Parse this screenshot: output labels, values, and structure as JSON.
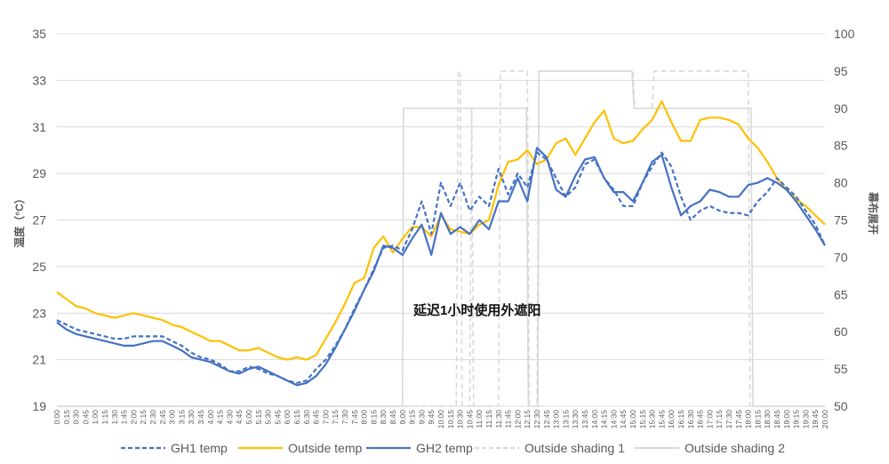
{
  "chart_data": {
    "type": "line",
    "y_left": {
      "label": "温度（°C）",
      "min": 19,
      "max": 35,
      "ticks": [
        19,
        21,
        23,
        25,
        27,
        29,
        31,
        33,
        35
      ]
    },
    "y_right": {
      "label": "幕布展开",
      "min": 50,
      "max": 100,
      "ticks": [
        50,
        55,
        60,
        65,
        70,
        75,
        80,
        85,
        90,
        95,
        100
      ]
    },
    "x_labels": [
      "0:00",
      "0:15",
      "0:30",
      "0:45",
      "1:00",
      "1:15",
      "1:30",
      "1:45",
      "2:00",
      "2:15",
      "2:30",
      "2:45",
      "3:00",
      "3:15",
      "3:30",
      "3:45",
      "4:00",
      "4:15",
      "4:30",
      "4:45",
      "5:00",
      "5:15",
      "5:30",
      "5:45",
      "6:00",
      "6:15",
      "6:30",
      "6:45",
      "7:00",
      "7:15",
      "7:30",
      "7:45",
      "8:00",
      "8:15",
      "8:30",
      "8:45",
      "9:00",
      "9:15",
      "9:30",
      "9:45",
      "10:00",
      "10:15",
      "10:30",
      "10:45",
      "11:00",
      "11:15",
      "11:30",
      "11:45",
      "12:00",
      "12:15",
      "12:30",
      "12:45",
      "13:00",
      "13:15",
      "13:30",
      "13:45",
      "14:00",
      "14:15",
      "14:30",
      "14:45",
      "15:00",
      "15:15",
      "15:30",
      "15:45",
      "16:00",
      "16:15",
      "16:30",
      "16:45",
      "17:00",
      "17:15",
      "17:30",
      "17:45",
      "18:00",
      "18:15",
      "18:30",
      "18:45",
      "19:00",
      "19:15",
      "19:30",
      "19:45",
      "20:00"
    ],
    "annotation": "延迟1小时使用外遮阳",
    "grid": true,
    "legend_position": "bottom",
    "series": [
      {
        "name": "GH1 temp",
        "axis": "left",
        "color": "#4472C4",
        "dash": "dashed",
        "values": [
          22.7,
          22.5,
          22.3,
          22.2,
          22.1,
          22.0,
          21.9,
          21.9,
          22.0,
          22.0,
          22.0,
          22.0,
          21.8,
          21.6,
          21.3,
          21.1,
          21.0,
          20.8,
          20.5,
          20.5,
          20.7,
          20.6,
          20.4,
          20.3,
          20.1,
          20.0,
          20.1,
          20.6,
          21.0,
          21.6,
          22.3,
          23.2,
          24.0,
          24.9,
          25.8,
          25.9,
          25.7,
          26.6,
          27.8,
          26.4,
          28.6,
          27.6,
          28.6,
          27.4,
          28.0,
          27.6,
          29.2,
          28.1,
          29.0,
          28.4,
          29.9,
          29.6,
          28.8,
          28.0,
          28.4,
          29.4,
          29.6,
          28.8,
          28.3,
          27.6,
          27.6,
          28.6,
          29.3,
          29.9,
          29.3,
          28.0,
          27.0,
          27.4,
          27.6,
          27.4,
          27.3,
          27.3,
          27.2,
          27.8,
          28.2,
          28.8,
          28.4,
          28.0,
          27.4,
          26.8,
          25.9
        ]
      },
      {
        "name": "Outside temp",
        "axis": "left",
        "color": "#FFC000",
        "dash": "solid",
        "values": [
          23.9,
          23.6,
          23.3,
          23.2,
          23.0,
          22.9,
          22.8,
          22.9,
          23.0,
          22.9,
          22.8,
          22.7,
          22.5,
          22.4,
          22.2,
          22.0,
          21.8,
          21.8,
          21.6,
          21.4,
          21.4,
          21.5,
          21.3,
          21.1,
          21.0,
          21.1,
          21.0,
          21.2,
          21.9,
          22.6,
          23.4,
          24.3,
          24.5,
          25.8,
          26.3,
          25.6,
          26.2,
          26.7,
          26.7,
          26.3,
          27.2,
          26.6,
          26.5,
          26.4,
          26.8,
          27.0,
          28.5,
          29.5,
          29.6,
          30.0,
          29.4,
          29.6,
          30.3,
          30.5,
          29.8,
          30.5,
          31.2,
          31.7,
          30.5,
          30.3,
          30.4,
          30.9,
          31.3,
          32.1,
          31.2,
          30.4,
          30.4,
          31.3,
          31.4,
          31.4,
          31.3,
          31.1,
          30.5,
          30.1,
          29.5,
          28.8,
          28.3,
          27.9,
          27.6,
          27.2,
          26.8
        ]
      },
      {
        "name": "GH2 temp",
        "axis": "left",
        "color": "#4472C4",
        "dash": "solid",
        "values": [
          22.6,
          22.3,
          22.1,
          22.0,
          21.9,
          21.8,
          21.7,
          21.6,
          21.6,
          21.7,
          21.8,
          21.8,
          21.6,
          21.4,
          21.1,
          21.0,
          20.9,
          20.7,
          20.5,
          20.4,
          20.6,
          20.7,
          20.5,
          20.3,
          20.1,
          19.9,
          20.0,
          20.3,
          20.8,
          21.5,
          22.3,
          23.1,
          24.0,
          24.8,
          25.9,
          25.8,
          25.5,
          26.2,
          26.8,
          25.5,
          27.3,
          26.4,
          26.7,
          26.4,
          27.0,
          26.6,
          27.8,
          27.8,
          28.8,
          27.8,
          30.1,
          29.7,
          28.3,
          28.0,
          28.9,
          29.6,
          29.7,
          28.8,
          28.2,
          28.2,
          27.8,
          28.6,
          29.5,
          29.8,
          28.4,
          27.2,
          27.6,
          27.8,
          28.3,
          28.2,
          28.0,
          28.0,
          28.5,
          28.6,
          28.8,
          28.6,
          28.3,
          27.8,
          27.2,
          26.6,
          25.9
        ]
      },
      {
        "name": "Outside shading 1",
        "axis": "right",
        "color": "#D9D9D9",
        "dash": "dashed",
        "steps": [
          [
            0,
            50
          ],
          [
            41.6,
            50
          ],
          [
            41.8,
            95
          ],
          [
            42.0,
            95
          ],
          [
            42.2,
            50
          ],
          [
            43.0,
            50
          ],
          [
            43.2,
            90
          ],
          [
            43.4,
            50
          ],
          [
            46.0,
            50
          ],
          [
            46.2,
            95
          ],
          [
            49.0,
            95
          ],
          [
            49.2,
            50
          ],
          [
            50.0,
            50
          ],
          [
            50.2,
            95
          ],
          [
            60.0,
            95
          ],
          [
            60.2,
            90
          ],
          [
            62.0,
            90
          ],
          [
            62.2,
            95
          ],
          [
            72.0,
            95
          ],
          [
            72.2,
            50
          ],
          [
            80.0,
            50
          ]
        ]
      },
      {
        "name": "Outside shading 2",
        "axis": "right",
        "color": "#D9D9D9",
        "dash": "solid",
        "steps": [
          [
            0,
            50
          ],
          [
            36.0,
            50
          ],
          [
            36.1,
            90
          ],
          [
            48.9,
            90
          ],
          [
            49.1,
            50
          ],
          [
            50.1,
            50
          ],
          [
            50.2,
            95
          ],
          [
            59.9,
            95
          ],
          [
            60.1,
            90
          ],
          [
            72.3,
            90
          ],
          [
            72.5,
            50
          ],
          [
            80.0,
            50
          ]
        ]
      }
    ]
  }
}
